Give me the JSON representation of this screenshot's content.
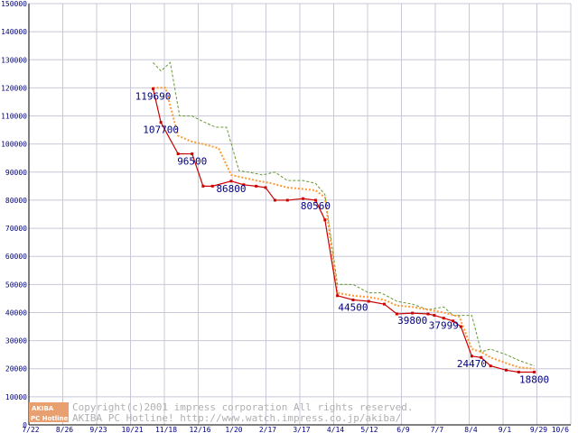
{
  "chart_data": {
    "type": "line",
    "ylim": [
      0,
      150000
    ],
    "yticks": [
      0,
      10000,
      20000,
      30000,
      40000,
      50000,
      60000,
      70000,
      80000,
      90000,
      100000,
      110000,
      120000,
      130000,
      140000,
      150000
    ],
    "xtick_labels": [
      "7/22",
      "8/26",
      "9/23",
      "10/21",
      "11/18",
      "12/16",
      "1/20",
      "2/17",
      "3/17",
      "4/14",
      "5/12",
      "6/9",
      "7/7",
      "8/4",
      "9/1",
      "9/29",
      "10/6"
    ],
    "grid": true,
    "series": [
      {
        "color": "#cc0000",
        "style": "solid-markers",
        "x": [
          0,
          0.25,
          0.8,
          1.25,
          1.6,
          1.9,
          2.5,
          2.9,
          3.3,
          3.6,
          3.9,
          4.3,
          4.8,
          5.2,
          5.5,
          5.9,
          6.4,
          6.9,
          7.4,
          7.8,
          8.3,
          8.8,
          9.0,
          9.3,
          9.6,
          9.85,
          10.2,
          10.5,
          10.8,
          11.3,
          11.7,
          12.2
        ],
        "y": [
          119690,
          107700,
          96500,
          96500,
          85000,
          85000,
          86800,
          85500,
          85000,
          84500,
          80000,
          80000,
          80560,
          80000,
          73000,
          46000,
          44500,
          44000,
          43000,
          39500,
          39800,
          39500,
          39000,
          37999,
          37000,
          35000,
          24470,
          24000,
          21000,
          19500,
          18800,
          18800
        ]
      },
      {
        "color": "#ff9933",
        "style": "dotted",
        "x": [
          0,
          0.4,
          0.8,
          1.2,
          1.6,
          2.1,
          2.5,
          2.9,
          3.3,
          3.8,
          4.3,
          4.8,
          5.2,
          5.5,
          5.9,
          6.4,
          6.9,
          7.4,
          7.8,
          8.3,
          8.8,
          9.3,
          9.8,
          10.2,
          10.5,
          10.8,
          11.3,
          11.7,
          12.2
        ],
        "y": [
          120000,
          120000,
          103000,
          101000,
          100000,
          98500,
          89000,
          88000,
          87000,
          86000,
          84500,
          84000,
          83500,
          81000,
          47000,
          46000,
          45500,
          44500,
          42500,
          42000,
          41000,
          40000,
          38500,
          27000,
          26000,
          24000,
          22000,
          20500,
          20000
        ]
      },
      {
        "color": "#669933",
        "style": "dashed",
        "x": [
          0,
          0.25,
          0.55,
          0.85,
          1.25,
          1.6,
          2.0,
          2.35,
          2.75,
          3.05,
          3.5,
          3.9,
          4.3,
          4.8,
          5.2,
          5.5,
          5.9,
          6.4,
          6.9,
          7.3,
          7.8,
          8.3,
          8.8,
          9.3,
          9.6,
          9.9,
          10.2,
          10.5,
          10.8,
          11.3,
          11.7,
          12.2
        ],
        "y": [
          129000,
          126000,
          129000,
          110000,
          110000,
          108000,
          106000,
          106000,
          90500,
          90000,
          89000,
          90000,
          87000,
          87000,
          86000,
          82000,
          50000,
          50000,
          47000,
          47000,
          44000,
          43000,
          41000,
          42000,
          39000,
          39000,
          39000,
          26000,
          27000,
          25000,
          23000,
          21000
        ]
      }
    ],
    "point_labels": [
      {
        "text": "119690",
        "x": 0,
        "y": 119690
      },
      {
        "text": "107700",
        "x": 0.25,
        "y": 107700
      },
      {
        "text": "96500",
        "x": 1.25,
        "y": 96500
      },
      {
        "text": "86800",
        "x": 2.5,
        "y": 86800
      },
      {
        "text": "80560",
        "x": 5.2,
        "y": 80560
      },
      {
        "text": "44500",
        "x": 6.4,
        "y": 44500
      },
      {
        "text": "39800",
        "x": 8.3,
        "y": 39800
      },
      {
        "text": "37999",
        "x": 9.3,
        "y": 37999
      },
      {
        "text": "24470",
        "x": 10.2,
        "y": 24470
      },
      {
        "text": "18800",
        "x": 12.2,
        "y": 18800
      }
    ],
    "watermark": {
      "logo_top": "AKIBA",
      "logo_bottom": "PC Hotline!",
      "line1": "Copyright(c)2001 impress corporation All rights reserved.",
      "line2": "AKIBA PC Hotline!  http://www.watch.impress.co.jp/akiba/"
    }
  }
}
